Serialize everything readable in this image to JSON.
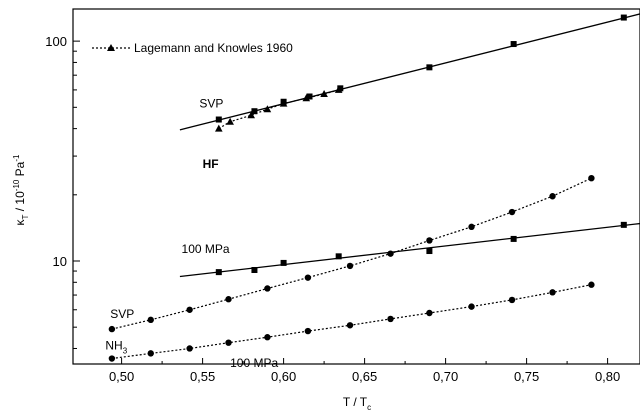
{
  "chart_data": {
    "type": "scatter",
    "xlabel": "T / T",
    "xlabel_sub": "c",
    "ylabel": "κ",
    "ylabel_sub": "T",
    "ylabel_rest": " / 10",
    "ylabel_sup": "-10",
    "ylabel_unit": " Pa",
    "ylabel_unit_sup": "-1",
    "xlim": [
      0.47,
      0.82
    ],
    "ylim": [
      3.4,
      140
    ],
    "yscale": "log",
    "x_ticks": [
      0.5,
      0.55,
      0.6,
      0.65,
      0.7,
      0.75,
      0.8
    ],
    "x_tick_labels": [
      "0,50",
      "0,55",
      "0,60",
      "0,65",
      "0,70",
      "0,75",
      "0,80"
    ],
    "y_ticks": [
      10,
      100
    ],
    "y_tick_labels": [
      "10",
      "100"
    ],
    "legend": {
      "position": "top-left",
      "entries": [
        {
          "label": "Lagemann and Knowles 1960",
          "marker": "triangle",
          "line": "dotted"
        }
      ]
    },
    "annotations": [
      {
        "text": "SVP",
        "x": 0.548,
        "y": 50,
        "bold": false
      },
      {
        "text": "HF",
        "x": 0.55,
        "y": 26.5,
        "bold": true
      },
      {
        "text": "100 MPa",
        "x": 0.537,
        "y": 10.9,
        "bold": false
      },
      {
        "text": "SVP",
        "x": 0.493,
        "y": 5.5,
        "bold": false
      },
      {
        "text": "NH",
        "sub": "3",
        "x": 0.49,
        "y": 3.95,
        "bold": false
      },
      {
        "text": "100 MPa",
        "x": 0.567,
        "y": 3.3,
        "bold": false
      }
    ],
    "series": [
      {
        "marker": "square",
        "line": "solid",
        "x": [
          0.56,
          0.582,
          0.6,
          0.616,
          0.635,
          0.69,
          0.742,
          0.81
        ],
        "y": [
          44,
          48,
          53,
          56,
          61,
          76,
          97,
          128
        ],
        "fit": {
          "x": [
            0.536,
            0.82
          ],
          "y": [
            39.5,
            133
          ]
        }
      },
      {
        "marker": "triangle",
        "line": "dotted",
        "x": [
          0.56,
          0.567,
          0.58,
          0.59,
          0.6,
          0.614,
          0.625,
          0.634
        ],
        "y": [
          40,
          43,
          46,
          49,
          52,
          55,
          57.5,
          60
        ]
      },
      {
        "marker": "square",
        "line": "solid",
        "x": [
          0.56,
          0.582,
          0.6,
          0.634,
          0.69,
          0.742,
          0.81
        ],
        "y": [
          8.9,
          9.1,
          9.8,
          10.5,
          11.1,
          12.6,
          14.6
        ],
        "fit": {
          "x": [
            0.536,
            0.82
          ],
          "y": [
            8.5,
            14.8
          ]
        }
      },
      {
        "marker": "circle",
        "line": "dotted",
        "x": [
          0.494,
          0.518,
          0.542,
          0.566,
          0.59,
          0.615,
          0.641,
          0.666,
          0.69,
          0.716,
          0.741,
          0.766,
          0.79
        ],
        "y": [
          4.9,
          5.4,
          6.0,
          6.7,
          7.5,
          8.4,
          9.5,
          10.8,
          12.4,
          14.3,
          16.7,
          19.7,
          23.8
        ]
      },
      {
        "marker": "circle",
        "line": "dotted",
        "x": [
          0.494,
          0.518,
          0.542,
          0.566,
          0.59,
          0.615,
          0.641,
          0.666,
          0.69,
          0.716,
          0.741,
          0.766,
          0.79
        ],
        "y": [
          3.6,
          3.8,
          4.0,
          4.25,
          4.5,
          4.8,
          5.1,
          5.45,
          5.8,
          6.2,
          6.65,
          7.2,
          7.8
        ]
      }
    ]
  }
}
